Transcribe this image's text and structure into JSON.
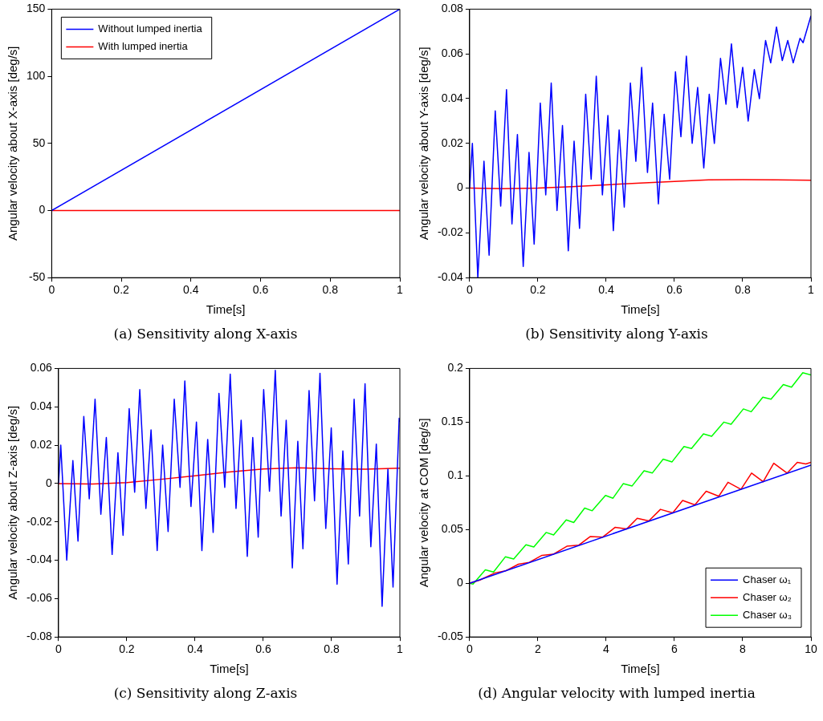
{
  "chart_data": [
    {
      "type": "line",
      "title": "(a)  Sensitivity along X-axis",
      "xlabel": "Time[s]",
      "ylabel": "Angular velocity about X-axis [deg/s]",
      "xlim": [
        0,
        1
      ],
      "xticks": [
        0,
        0.2,
        0.4,
        0.6,
        0.8,
        1
      ],
      "ylim": [
        -50,
        150
      ],
      "yticks": [
        -50,
        0,
        50,
        100,
        150
      ],
      "grid": false,
      "legend": "top left",
      "marker": "none",
      "line_style": "solid",
      "series": [
        {
          "name": "Without lumped inertia",
          "color": "#0000ff",
          "x": [
            0,
            1
          ],
          "values": [
            0,
            150
          ]
        },
        {
          "name": "With lumped inertia",
          "color": "#ff0000",
          "x": [
            0,
            1
          ],
          "values": [
            0,
            0
          ]
        }
      ]
    },
    {
      "type": "line",
      "title": "(b)  Sensitivity along Y-axis",
      "xlabel": "Time[s]",
      "ylabel": "Angular velocity about Y-axis [deg/s]",
      "xlim": [
        0,
        1
      ],
      "xticks": [
        0,
        0.2,
        0.4,
        0.6,
        0.8,
        1
      ],
      "ylim": [
        -0.04,
        0.08
      ],
      "yticks": [
        -0.04,
        -0.02,
        0,
        0.02,
        0.04,
        0.06,
        0.08
      ],
      "grid": false,
      "marker": "none",
      "line_style": "solid",
      "series": [
        {
          "color": "#0000ff",
          "x": [
            0,
            0.008,
            0.024,
            0.042,
            0.057,
            0.075,
            0.091,
            0.108,
            0.124,
            0.14,
            0.157,
            0.174,
            0.189,
            0.207,
            0.223,
            0.239,
            0.256,
            0.272,
            0.289,
            0.306,
            0.322,
            0.34,
            0.356,
            0.371,
            0.389,
            0.405,
            0.421,
            0.438,
            0.453,
            0.471,
            0.487,
            0.504,
            0.521,
            0.536,
            0.553,
            0.57,
            0.586,
            0.603,
            0.619,
            0.635,
            0.652,
            0.668,
            0.686,
            0.702,
            0.717,
            0.735,
            0.751,
            0.767,
            0.784,
            0.8,
            0.816,
            0.834,
            0.849,
            0.867,
            0.882,
            0.899,
            0.916,
            0.932,
            0.948,
            0.968,
            0.977,
            1
          ],
          "values": [
            0,
            0.02,
            -0.04,
            0.012,
            -0.03,
            0.0345,
            -0.008,
            0.044,
            -0.016,
            0.024,
            -0.035,
            0.016,
            -0.025,
            0.038,
            -0.003,
            0.047,
            -0.01,
            0.028,
            -0.028,
            0.021,
            -0.018,
            0.042,
            0.004,
            0.05,
            -0.003,
            0.0325,
            -0.019,
            0.026,
            -0.0085,
            0.047,
            0.012,
            0.054,
            0.007,
            0.038,
            -0.007,
            0.033,
            0.004,
            0.052,
            0.023,
            0.059,
            0.02,
            0.045,
            0.009,
            0.042,
            0.02,
            0.058,
            0.0375,
            0.0645,
            0.036,
            0.054,
            0.03,
            0.053,
            0.04,
            0.066,
            0.056,
            0.072,
            0.057,
            0.066,
            0.056,
            0.067,
            0.065,
            0.077
          ]
        },
        {
          "color": "#ff0000",
          "x": [
            0,
            0.1,
            0.2,
            0.3,
            0.4,
            0.5,
            0.6,
            0.7,
            0.8,
            0.9,
            1
          ],
          "values": [
            0,
            -0.0002,
            0,
            0.0007,
            0.0015,
            0.0023,
            0.003,
            0.0037,
            0.0038,
            0.0037,
            0.0035
          ]
        }
      ]
    },
    {
      "type": "line",
      "title": "(c)  Sensitivity along Z-axis",
      "xlabel": "Time[s]",
      "ylabel": "Angular velocity about Z-axis [deg/s]",
      "xlim": [
        0,
        1
      ],
      "xticks": [
        0,
        0.2,
        0.4,
        0.6,
        0.8,
        1
      ],
      "ylim": [
        -0.08,
        0.06
      ],
      "yticks": [
        -0.08,
        -0.06,
        -0.04,
        -0.02,
        0,
        0.02,
        0.04,
        0.06
      ],
      "grid": false,
      "marker": "none",
      "line_style": "solid",
      "series": [
        {
          "color": "#0000ff",
          "x": [
            0,
            0.0065,
            0.024,
            0.042,
            0.057,
            0.074,
            0.09,
            0.107,
            0.124,
            0.14,
            0.157,
            0.174,
            0.189,
            0.207,
            0.223,
            0.238,
            0.256,
            0.271,
            0.289,
            0.305,
            0.321,
            0.339,
            0.356,
            0.37,
            0.388,
            0.404,
            0.42,
            0.437,
            0.453,
            0.47,
            0.487,
            0.503,
            0.52,
            0.535,
            0.553,
            0.569,
            0.585,
            0.601,
            0.618,
            0.635,
            0.652,
            0.667,
            0.685,
            0.701,
            0.716,
            0.734,
            0.75,
            0.766,
            0.783,
            0.799,
            0.816,
            0.833,
            0.849,
            0.866,
            0.882,
            0.898,
            0.915,
            0.931,
            0.948,
            0.965,
            0.98,
            0.998,
            1
          ],
          "values": [
            0,
            0.02,
            -0.04,
            0.012,
            -0.03,
            0.035,
            -0.008,
            0.044,
            -0.016,
            0.024,
            -0.037,
            0.016,
            -0.027,
            0.039,
            -0.0045,
            0.049,
            -0.013,
            0.028,
            -0.035,
            0.02,
            -0.025,
            0.044,
            -0.002,
            0.0535,
            -0.012,
            0.032,
            -0.035,
            0.023,
            -0.0255,
            0.047,
            -0.002,
            0.057,
            -0.013,
            0.033,
            -0.038,
            0.024,
            -0.028,
            0.049,
            -0.004,
            0.059,
            -0.017,
            0.033,
            -0.044,
            0.022,
            -0.034,
            0.0485,
            -0.009,
            0.0575,
            -0.0235,
            0.029,
            -0.0525,
            0.017,
            -0.042,
            0.044,
            -0.017,
            0.052,
            -0.033,
            0.0205,
            -0.064,
            0.0075,
            -0.054,
            0.034,
            0.032
          ]
        },
        {
          "color": "#ff0000",
          "x": [
            0,
            0.1,
            0.2,
            0.3,
            0.4,
            0.5,
            0.6,
            0.7,
            0.8,
            0.9,
            1
          ],
          "values": [
            0,
            -0.0003,
            0.0005,
            0.0022,
            0.004,
            0.006,
            0.0076,
            0.0082,
            0.0077,
            0.0075,
            0.008
          ]
        }
      ]
    },
    {
      "type": "line",
      "title": "(d)  Angular velocity with lumped inertia",
      "xlabel": "Time[s]",
      "ylabel": "Angular velocity at COM [deg/s]",
      "xlim": [
        0,
        10
      ],
      "xticks": [
        0,
        2,
        4,
        6,
        8,
        10
      ],
      "ylim": [
        -0.05,
        0.2
      ],
      "yticks": [
        -0.05,
        0,
        0.05,
        0.1,
        0.15,
        0.2
      ],
      "grid": false,
      "legend": "bottom right",
      "marker": "none",
      "line_style": "solid",
      "series": [
        {
          "name": "Chaser ω₁",
          "color": "#0000ff",
          "x": [
            0,
            10
          ],
          "values": [
            0,
            0.11
          ]
        },
        {
          "name": "Chaser ω₂",
          "color": "#ff0000",
          "x": [
            0,
            0.3,
            0.74,
            1.05,
            1.43,
            1.75,
            2.12,
            2.45,
            2.85,
            3.2,
            3.53,
            3.9,
            4.26,
            4.6,
            4.91,
            5.25,
            5.59,
            5.95,
            6.24,
            6.6,
            6.93,
            7.3,
            7.57,
            7.95,
            8.26,
            8.6,
            8.91,
            9.3,
            9.6,
            9.85,
            10
          ],
          "values": [
            0,
            0.003,
            0.0096,
            0.0115,
            0.0177,
            0.0195,
            0.026,
            0.027,
            0.0345,
            0.0355,
            0.0434,
            0.043,
            0.052,
            0.0505,
            0.0605,
            0.058,
            0.0688,
            0.0655,
            0.0771,
            0.073,
            0.0857,
            0.081,
            0.094,
            0.0875,
            0.1026,
            0.0945,
            0.1117,
            0.1025,
            0.1125,
            0.111,
            0.1125
          ]
        },
        {
          "name": "Chaser ω₃",
          "color": "#00ff00",
          "x": [
            0,
            0.1,
            0.46,
            0.7,
            1.05,
            1.29,
            1.65,
            1.88,
            2.24,
            2.46,
            2.83,
            3.05,
            3.37,
            3.59,
            3.98,
            4.2,
            4.5,
            4.76,
            5.11,
            5.35,
            5.67,
            5.93,
            6.28,
            6.5,
            6.85,
            7.09,
            7.45,
            7.66,
            8.02,
            8.25,
            8.59,
            8.83,
            9.19,
            9.43,
            9.76,
            10
          ],
          "values": [
            0,
            -0.0008,
            0.0125,
            0.0104,
            0.0247,
            0.0226,
            0.0358,
            0.0338,
            0.0473,
            0.045,
            0.059,
            0.0566,
            0.07,
            0.0675,
            0.0818,
            0.0792,
            0.0927,
            0.0906,
            0.1047,
            0.1026,
            0.1156,
            0.113,
            0.1273,
            0.1255,
            0.139,
            0.1369,
            0.15,
            0.148,
            0.1623,
            0.1597,
            0.1732,
            0.1714,
            0.185,
            0.1826,
            0.196,
            0.194
          ]
        }
      ]
    }
  ]
}
